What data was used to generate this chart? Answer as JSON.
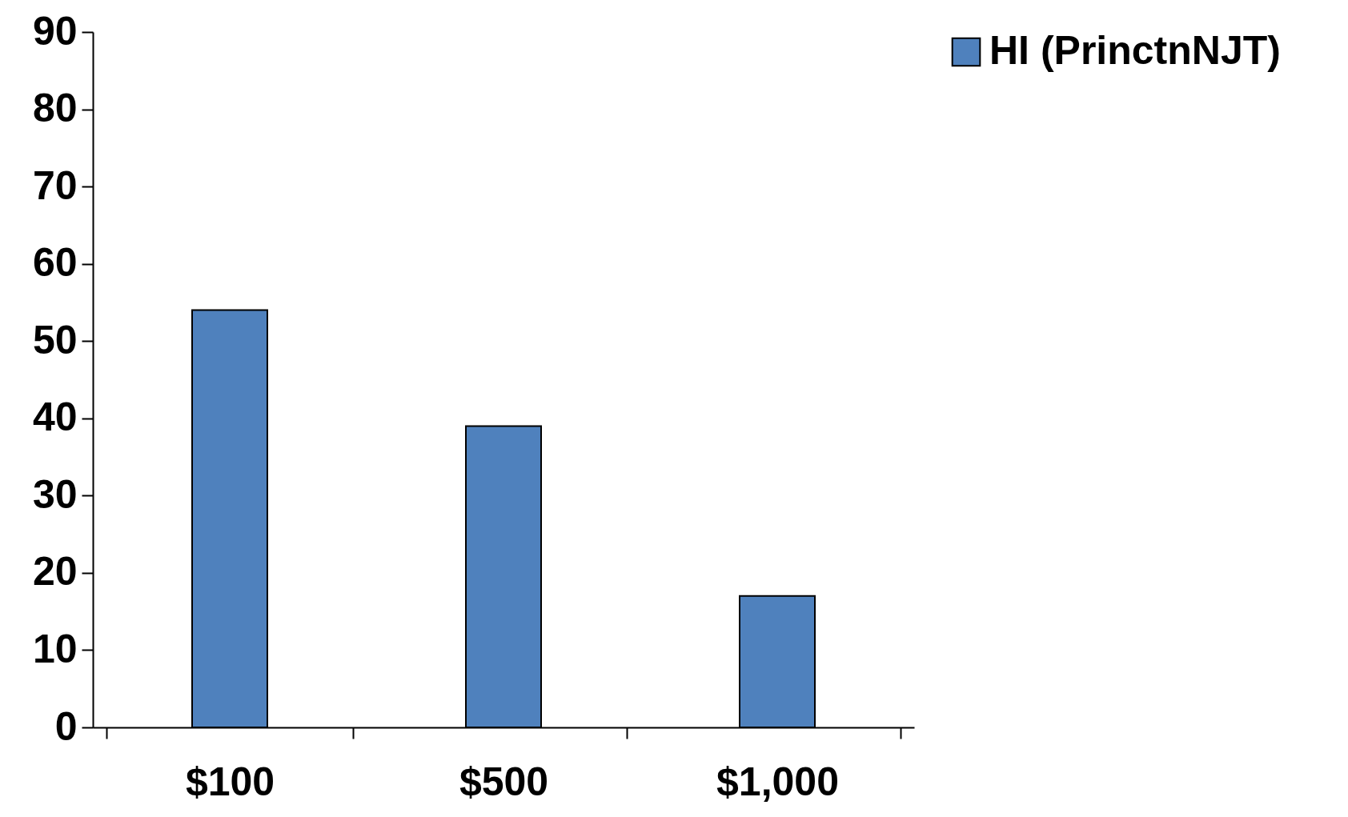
{
  "chart_data": {
    "type": "bar",
    "categories": [
      "$100",
      "$500",
      "$1,000"
    ],
    "series": [
      {
        "name": "HI (PrinctnNJT)",
        "color": "#4f81bd",
        "values": [
          54,
          39,
          17
        ]
      }
    ],
    "ylim": [
      0,
      90
    ],
    "yticks": [
      0,
      10,
      20,
      30,
      40,
      50,
      60,
      70,
      80,
      90
    ],
    "grid": false,
    "legend": "right"
  }
}
